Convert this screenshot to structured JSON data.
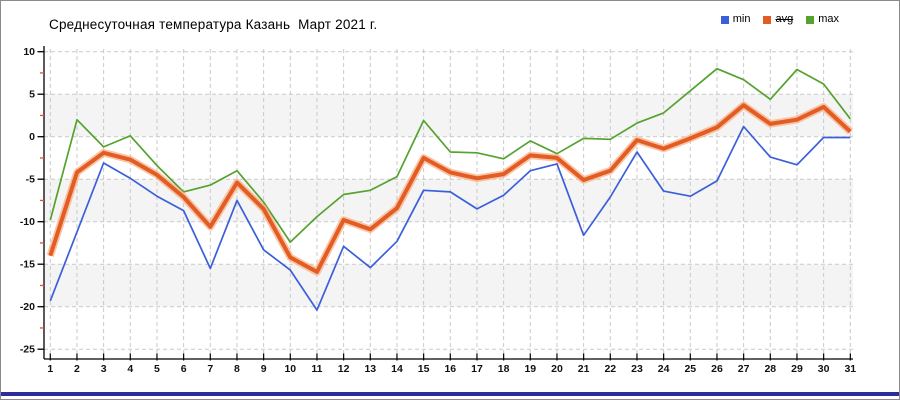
{
  "title": "Среднесуточная температура Казань  Март 2021 г.",
  "legend": {
    "items": [
      {
        "label": "min",
        "strikethrough": false
      },
      {
        "label": "avg",
        "strikethrough": true
      },
      {
        "label": "max",
        "strikethrough": false
      }
    ]
  },
  "chart_data": {
    "type": "line",
    "title": "Среднесуточная температура Казань  Март 2021 г.",
    "x": [
      1,
      2,
      3,
      4,
      5,
      6,
      7,
      8,
      9,
      10,
      11,
      12,
      13,
      14,
      15,
      16,
      17,
      18,
      19,
      20,
      21,
      22,
      23,
      24,
      25,
      26,
      27,
      28,
      29,
      30,
      31
    ],
    "series": [
      {
        "name": "min",
        "color": "#3b5fd9",
        "width": 1.7,
        "values": [
          -19.3,
          -11.2,
          -3.1,
          -4.9,
          -7.0,
          -8.7,
          -15.5,
          -7.5,
          -13.3,
          -15.7,
          -20.4,
          -12.9,
          -15.4,
          -12.3,
          -6.3,
          -6.5,
          -8.5,
          -6.9,
          -4.0,
          -3.2,
          -11.6,
          -7.1,
          -1.8,
          -6.4,
          -7.0,
          -5.2,
          1.2,
          -2.4,
          -3.3,
          -0.1,
          -0.1
        ]
      },
      {
        "name": "avg",
        "color": "#e25c24",
        "width": 4,
        "halo": "#f8b187",
        "values": [
          -14.0,
          -4.2,
          -1.9,
          -2.7,
          -4.5,
          -7.1,
          -10.6,
          -5.4,
          -8.5,
          -14.2,
          -15.9,
          -9.8,
          -10.9,
          -8.4,
          -2.5,
          -4.2,
          -4.9,
          -4.4,
          -2.2,
          -2.5,
          -5.1,
          -4.0,
          -0.4,
          -1.4,
          -0.2,
          1.1,
          3.7,
          1.5,
          2.0,
          3.5,
          0.6
        ]
      },
      {
        "name": "max",
        "color": "#55a22e",
        "width": 1.7,
        "values": [
          -9.8,
          2.0,
          -1.2,
          0.1,
          -3.4,
          -6.5,
          -5.7,
          -4.0,
          -7.7,
          -12.4,
          -9.4,
          -6.8,
          -6.3,
          -4.7,
          1.9,
          -1.8,
          -1.9,
          -2.6,
          -0.5,
          -2.0,
          -0.2,
          -0.3,
          1.6,
          2.8,
          5.4,
          8.0,
          6.7,
          4.4,
          7.9,
          6.2,
          2.1
        ]
      }
    ],
    "ylim": [
      -25,
      10
    ],
    "y_ticks_major": [
      10,
      5,
      0,
      -5,
      -10,
      -15,
      -20,
      -25
    ],
    "y_ticks_minor": [
      7.5,
      2.5,
      -2.5,
      -7.5,
      -12.5,
      -17.5,
      -22.5
    ],
    "gray_bands": [
      [
        5,
        0
      ],
      [
        -5,
        -10
      ],
      [
        -15,
        -20
      ]
    ],
    "grid": "dashed",
    "legend_position": "top-right",
    "xlabel": "",
    "ylabel": ""
  },
  "colors": {
    "band": "#f4f4f4",
    "grid": "#c9c9c9",
    "axis": "#000000",
    "minor_tick": "#e0502a",
    "tick_label": "#111111",
    "bottom_bar": "#2c2c9c"
  }
}
